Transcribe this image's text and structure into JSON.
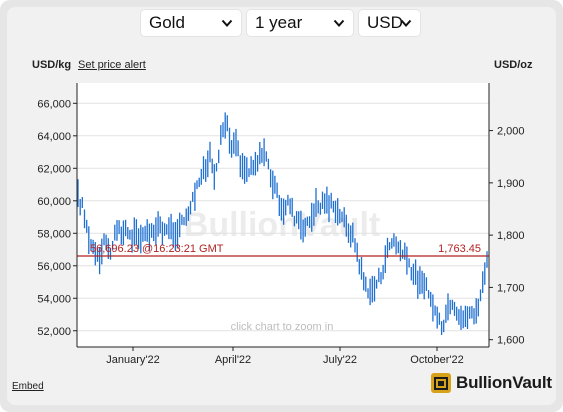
{
  "controls": {
    "metal": "Gold",
    "period": "1 year",
    "currency": "USD"
  },
  "header": {
    "left_unit": "USD/kg",
    "alert_link": "Set price alert",
    "right_unit": "USD/oz"
  },
  "watermark": "BullionVault",
  "zoom_hint": "click chart to zoom in",
  "price_left": "56,696.23 @16:23:21 GMT",
  "price_right": "1,763.45",
  "footer": {
    "embed": "Embed",
    "brand": "BullionVault"
  },
  "colors": {
    "series": "#1f6fd0",
    "price_line": "#b22222",
    "brand_gold": "#d7a21a"
  },
  "chart_data": {
    "type": "line",
    "style": "high-low bars",
    "x_ticks": [
      "January'22",
      "April'22",
      "July'22",
      "October'22"
    ],
    "y_left": {
      "label": "USD/kg",
      "ticks": [
        "66,000",
        "64,000",
        "62,000",
        "60,000",
        "58,000",
        "56,000",
        "54,000",
        "52,000"
      ],
      "ylim": [
        51000,
        67250
      ]
    },
    "y_right": {
      "label": "USD/oz",
      "ticks": [
        "2,000",
        "1,900",
        "1,800",
        "1,700",
        "1,600"
      ],
      "ylim": [
        1586,
        2091
      ]
    },
    "current_price": {
      "usd_oz": 1763.45,
      "usd_kg": 56696.23,
      "time": "16:23:21 GMT"
    },
    "series": [
      {
        "values": [
          60200,
          59600,
          58300,
          57300,
          57000,
          56600,
          57800,
          56800,
          57400,
          58200,
          57900,
          58500,
          57600,
          58000,
          57400,
          58300,
          58000,
          57800,
          58700,
          58400,
          57800,
          58400,
          58000,
          58500,
          58700,
          59500,
          60000,
          60900,
          61500,
          61900,
          62900,
          61800,
          63000,
          64500,
          64800,
          63000,
          63700,
          62000,
          61900,
          61800,
          62000,
          62400,
          63300,
          62500,
          61400,
          60500,
          59800,
          59400,
          60000,
          59100,
          59000,
          58500,
          58400,
          59000,
          59700,
          59600,
          60100,
          59600,
          60000,
          59300,
          59200,
          58300,
          58100,
          57400,
          56200,
          55000,
          54600,
          54400,
          55000,
          55500,
          56700,
          57300,
          57700,
          57000,
          56700,
          56300,
          55700,
          55200,
          54800,
          54700,
          54000,
          53400,
          52400,
          52500,
          53400,
          54000,
          53400,
          53000,
          52600,
          53200,
          52800,
          53700,
          54800,
          56700
        ]
      }
    ]
  }
}
